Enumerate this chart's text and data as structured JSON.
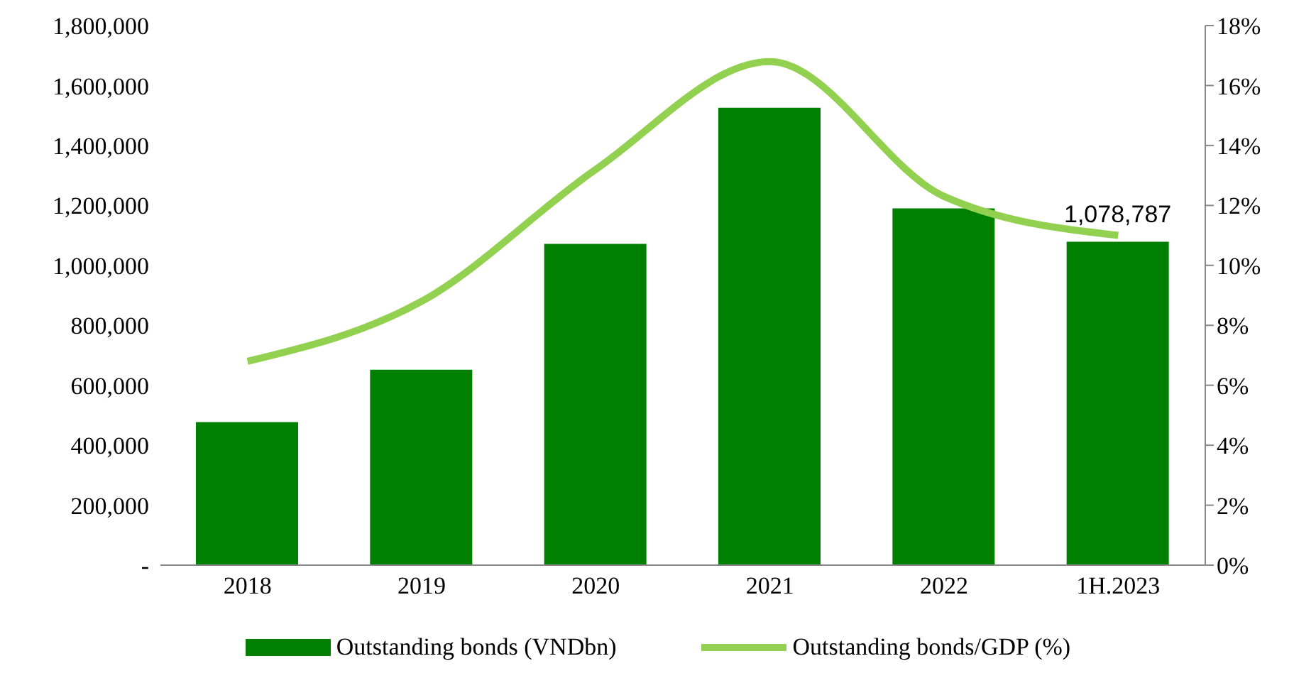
{
  "chart_data": {
    "type": "bar",
    "categories": [
      "2018",
      "2019",
      "2020",
      "2021",
      "2022",
      "1H.2023"
    ],
    "series": [
      {
        "name": "Outstanding bonds (VNDbn)",
        "color": "#008000",
        "values": [
          477000,
          652000,
          1072000,
          1526000,
          1190000,
          1078787
        ],
        "value_labels": [
          null,
          null,
          null,
          null,
          null,
          "1,078,787"
        ]
      },
      {
        "name": "Outstanding bonds/GDP (%)",
        "type": "line",
        "axis": "y2",
        "color": "#92d050",
        "values": [
          6.8,
          8.8,
          13.2,
          16.8,
          12.3,
          11.0
        ],
        "marker": "none"
      }
    ],
    "ylim": [
      0,
      1800000
    ],
    "yticks": [
      {
        "value": 0,
        "label": "-"
      },
      {
        "value": 200000,
        "label": "200,000"
      },
      {
        "value": 400000,
        "label": "400,000"
      },
      {
        "value": 600000,
        "label": "600,000"
      },
      {
        "value": 800000,
        "label": "800,000"
      },
      {
        "value": 1000000,
        "label": "1,000,000"
      },
      {
        "value": 1200000,
        "label": "1,200,000"
      },
      {
        "value": 1400000,
        "label": "1,400,000"
      },
      {
        "value": 1600000,
        "label": "1,600,000"
      },
      {
        "value": 1800000,
        "label": "1,800,000"
      }
    ],
    "y2lim": [
      0,
      18
    ],
    "y2ticks": [
      {
        "value": 0,
        "label": "0%"
      },
      {
        "value": 2,
        "label": "2%"
      },
      {
        "value": 4,
        "label": "4%"
      },
      {
        "value": 6,
        "label": "6%"
      },
      {
        "value": 8,
        "label": "8%"
      },
      {
        "value": 10,
        "label": "10%"
      },
      {
        "value": 12,
        "label": "12%"
      },
      {
        "value": 14,
        "label": "14%"
      },
      {
        "value": 16,
        "label": "16%"
      },
      {
        "value": 18,
        "label": "18%"
      }
    ],
    "grid": false,
    "legend": "bottom"
  }
}
